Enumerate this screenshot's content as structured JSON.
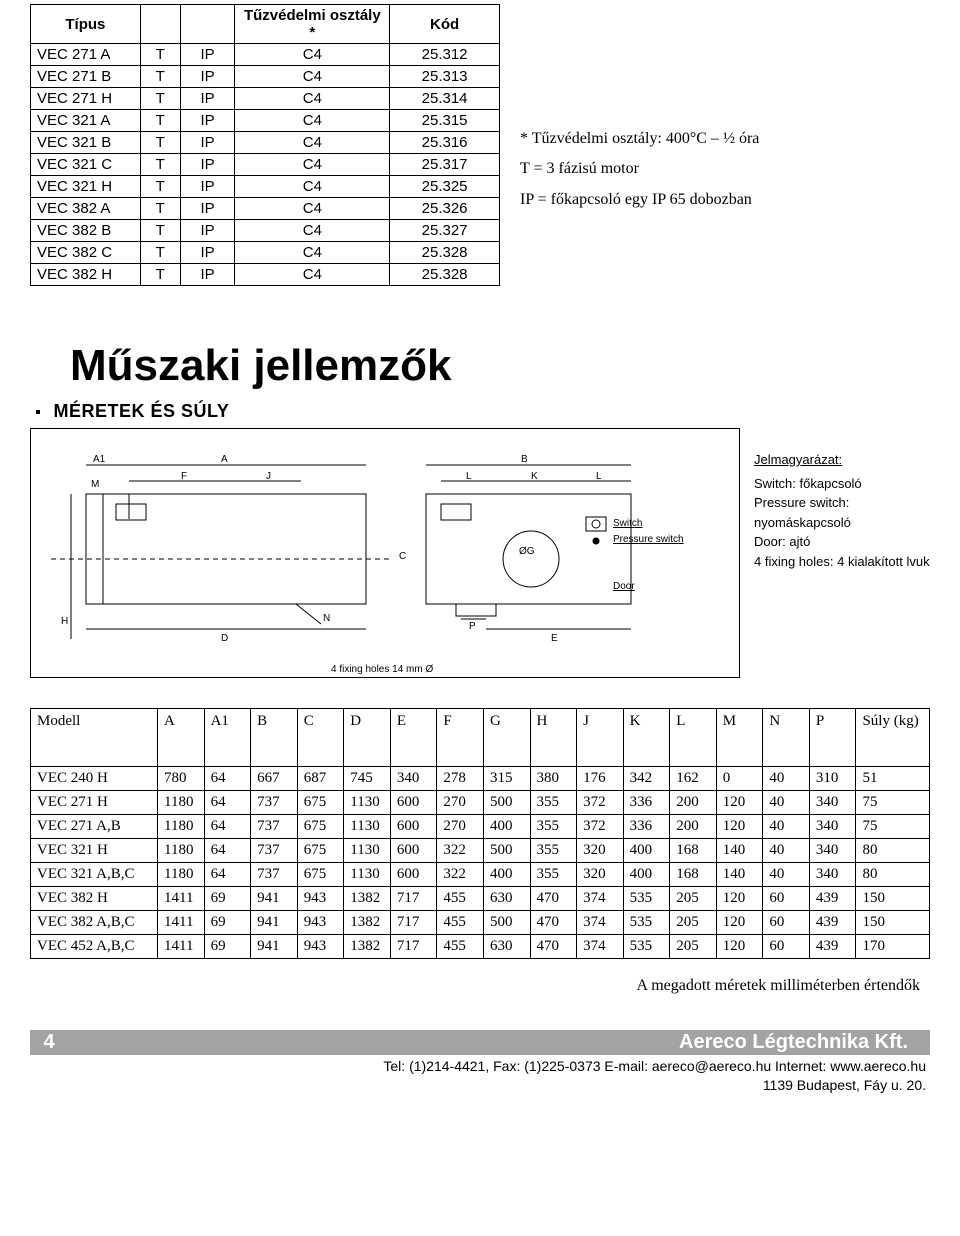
{
  "type_table": {
    "headers": [
      "Típus",
      "",
      "",
      "Tűzvédelmi osztály *",
      "Kód"
    ],
    "rows": [
      [
        "VEC 271 A",
        "T",
        "IP",
        "C4",
        "25.312"
      ],
      [
        "VEC 271 B",
        "T",
        "IP",
        "C4",
        "25.313"
      ],
      [
        "VEC 271 H",
        "T",
        "IP",
        "C4",
        "25.314"
      ],
      [
        "VEC 321 A",
        "T",
        "IP",
        "C4",
        "25.315"
      ],
      [
        "VEC 321 B",
        "T",
        "IP",
        "C4",
        "25.316"
      ],
      [
        "VEC 321 C",
        "T",
        "IP",
        "C4",
        "25.317"
      ],
      [
        "VEC 321 H",
        "T",
        "IP",
        "C4",
        "25.325"
      ],
      [
        "VEC 382 A",
        "T",
        "IP",
        "C4",
        "25.326"
      ],
      [
        "VEC 382 B",
        "T",
        "IP",
        "C4",
        "25.327"
      ],
      [
        "VEC 382 C",
        "T",
        "IP",
        "C4",
        "25.328"
      ],
      [
        "VEC 382 H",
        "T",
        "IP",
        "C4",
        "25.328"
      ]
    ]
  },
  "side_notes": {
    "line1": "* Tűzvédelmi osztály: 400°C – ½ óra",
    "line2": "T = 3 fázisú motor",
    "line3": "IP = főkapcsoló egy IP 65 dobozban"
  },
  "heading": "Műszaki jellemzők",
  "subheading": "MÉRETEK ÉS SÚLY",
  "diagram": {
    "labels": {
      "A1": "A1",
      "A": "A",
      "B": "B",
      "F": "F",
      "J": "J",
      "L": "L",
      "K": "K",
      "C": "C",
      "H": "H",
      "D": "D",
      "N": "N",
      "M": "M",
      "E": "E",
      "P": "P",
      "G": "ØG",
      "switch": "Switch",
      "pswitch": "Pressure switch",
      "door": "Door"
    },
    "footnote": "4 fixing holes 14 mm Ø"
  },
  "legend": {
    "title": "Jelmagyarázat:",
    "items": [
      "Switch: főkapcsoló",
      "Pressure switch: nyomáskapcsoló",
      "Door: ajtó",
      "4 fixing holes: 4 kialakított lvuk"
    ]
  },
  "dim_table": {
    "headers": [
      "Modell",
      "A",
      "A1",
      "B",
      "C",
      "D",
      "E",
      "F",
      "G",
      "H",
      "J",
      "K",
      "L",
      "M",
      "N",
      "P",
      "Súly (kg)"
    ],
    "rows": [
      [
        "VEC 240 H",
        "780",
        "64",
        "667",
        "687",
        "745",
        "340",
        "278",
        "315",
        "380",
        "176",
        "342",
        "162",
        "0",
        "40",
        "310",
        "51"
      ],
      [
        "VEC 271 H",
        "1180",
        "64",
        "737",
        "675",
        "1130",
        "600",
        "270",
        "500",
        "355",
        "372",
        "336",
        "200",
        "120",
        "40",
        "340",
        "75"
      ],
      [
        "VEC 271 A,B",
        "1180",
        "64",
        "737",
        "675",
        "1130",
        "600",
        "270",
        "400",
        "355",
        "372",
        "336",
        "200",
        "120",
        "40",
        "340",
        "75"
      ],
      [
        "VEC 321 H",
        "1180",
        "64",
        "737",
        "675",
        "1130",
        "600",
        "322",
        "500",
        "355",
        "320",
        "400",
        "168",
        "140",
        "40",
        "340",
        "80"
      ],
      [
        "VEC 321 A,B,C",
        "1180",
        "64",
        "737",
        "675",
        "1130",
        "600",
        "322",
        "400",
        "355",
        "320",
        "400",
        "168",
        "140",
        "40",
        "340",
        "80"
      ],
      [
        "VEC 382 H",
        "1411",
        "69",
        "941",
        "943",
        "1382",
        "717",
        "455",
        "630",
        "470",
        "374",
        "535",
        "205",
        "120",
        "60",
        "439",
        "150"
      ],
      [
        "VEC 382 A,B,C",
        "1411",
        "69",
        "941",
        "943",
        "1382",
        "717",
        "455",
        "500",
        "470",
        "374",
        "535",
        "205",
        "120",
        "60",
        "439",
        "150"
      ],
      [
        "VEC 452 A,B,C",
        "1411",
        "69",
        "941",
        "943",
        "1382",
        "717",
        "455",
        "630",
        "470",
        "374",
        "535",
        "205",
        "120",
        "60",
        "439",
        "170"
      ]
    ]
  },
  "unit_note": "A megadott méretek milliméterben értendők",
  "footer": {
    "page": "4",
    "company": "Aereco Légtechnika Kft.",
    "contact1": "Tel: (1)214-4421, Fax: (1)225-0373  E-mail: aereco@aereco.hu Internet: www.aereco.hu",
    "contact2": "1139 Budapest, Fáy u. 20."
  }
}
